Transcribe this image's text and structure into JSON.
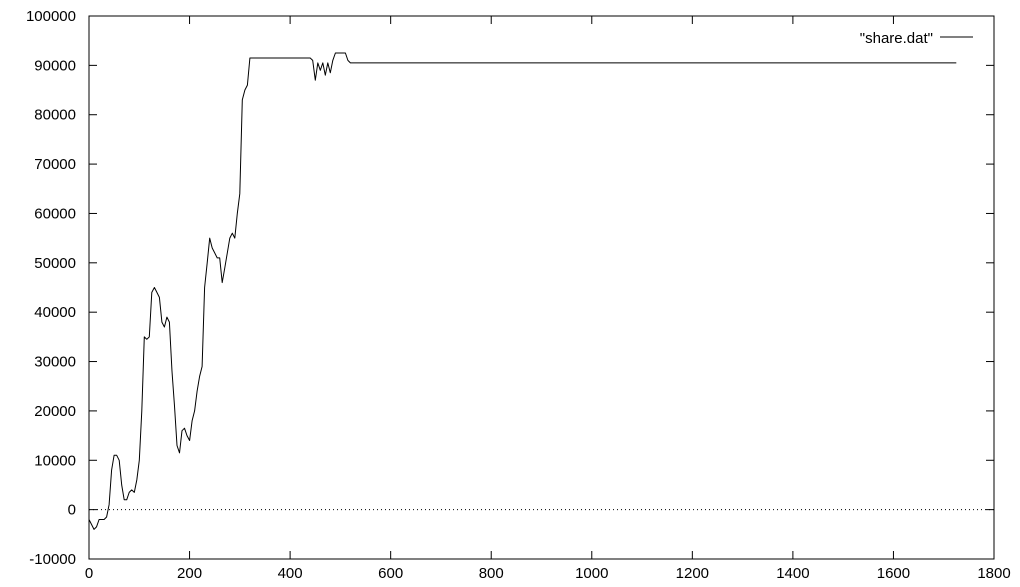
{
  "chart_data": {
    "type": "line",
    "title": "",
    "xlabel": "",
    "ylabel": "",
    "xlim": [
      0,
      1800
    ],
    "ylim": [
      -10000,
      100000
    ],
    "xticks": [
      0,
      200,
      400,
      600,
      800,
      1000,
      1200,
      1400,
      1600,
      1800
    ],
    "yticks": [
      -10000,
      0,
      10000,
      20000,
      30000,
      40000,
      50000,
      60000,
      70000,
      80000,
      90000,
      100000
    ],
    "grid": false,
    "zero_line": true,
    "legend_position": "top-right",
    "colors": {
      "series": "#000000",
      "axes": "#000000"
    },
    "series": [
      {
        "name": "\"share.dat\"",
        "x": [
          0,
          5,
          10,
          15,
          20,
          25,
          30,
          35,
          40,
          45,
          50,
          55,
          60,
          65,
          70,
          75,
          80,
          85,
          90,
          95,
          100,
          105,
          110,
          115,
          120,
          125,
          130,
          135,
          140,
          145,
          150,
          155,
          160,
          165,
          170,
          175,
          180,
          185,
          190,
          195,
          200,
          205,
          210,
          215,
          220,
          225,
          230,
          235,
          240,
          245,
          250,
          255,
          260,
          265,
          270,
          275,
          280,
          285,
          290,
          295,
          300,
          305,
          310,
          315,
          320,
          325,
          330,
          335,
          340,
          345,
          350,
          355,
          360,
          380,
          400,
          420,
          440,
          445,
          450,
          455,
          460,
          465,
          470,
          475,
          480,
          485,
          490,
          495,
          500,
          505,
          510,
          515,
          520,
          525,
          530,
          600,
          800,
          1000,
          1200,
          1400,
          1600,
          1725
        ],
        "values": [
          -2000,
          -3000,
          -4000,
          -3500,
          -2000,
          -2000,
          -2000,
          -1500,
          1000,
          8000,
          11000,
          11000,
          10000,
          5000,
          2000,
          2000,
          3500,
          4000,
          3500,
          6000,
          10000,
          20000,
          35000,
          34500,
          35000,
          44000,
          45000,
          44000,
          43000,
          38000,
          37000,
          39000,
          38000,
          28000,
          21000,
          13000,
          11500,
          16000,
          16500,
          15000,
          14000,
          18000,
          20000,
          24000,
          27000,
          29000,
          45000,
          50000,
          55000,
          53000,
          52000,
          51000,
          51000,
          46000,
          49000,
          52000,
          55000,
          56000,
          55000,
          60000,
          64000,
          83000,
          85000,
          86000,
          91500,
          91500,
          91500,
          91500,
          91500,
          91500,
          91500,
          91500,
          91500,
          91500,
          91500,
          91500,
          91500,
          91000,
          87000,
          90500,
          89000,
          90500,
          88000,
          90500,
          88500,
          91000,
          92500,
          92500,
          92500,
          92500,
          92500,
          91000,
          90500,
          90500,
          90500,
          90500,
          90500,
          90500,
          90500,
          90500,
          90500,
          90500
        ]
      }
    ]
  }
}
